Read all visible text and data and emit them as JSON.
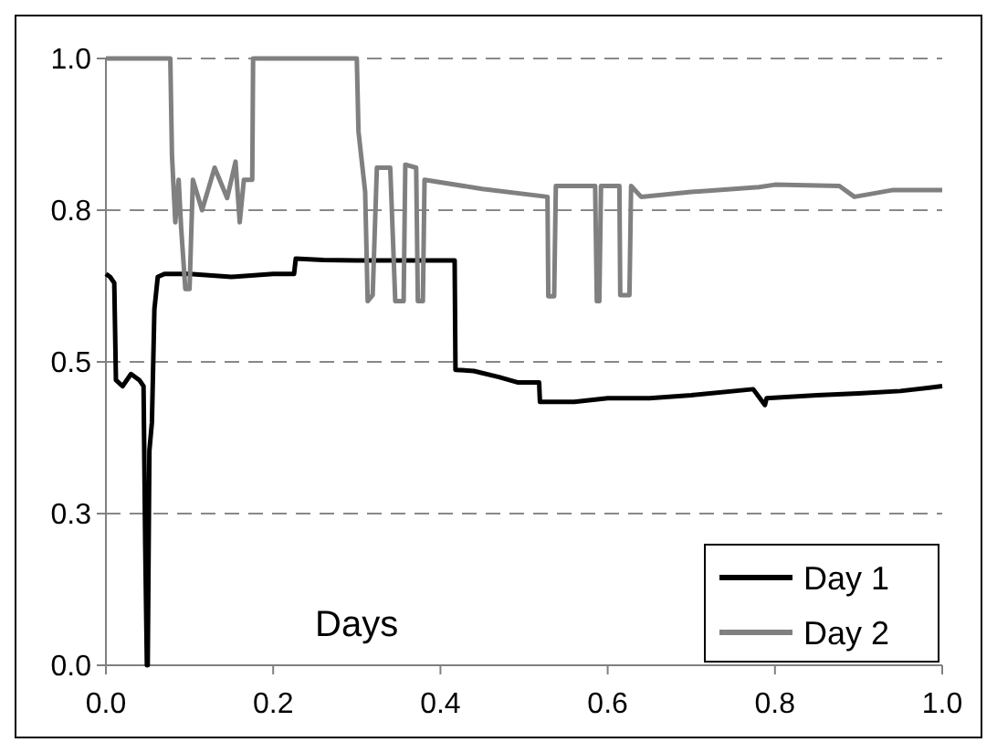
{
  "chart_data": {
    "type": "line",
    "xlabel": "Days",
    "xlim": [
      0,
      1
    ],
    "xticks": [
      {
        "value": 0,
        "label": "0.0"
      },
      0.2,
      0.4,
      0.6,
      0.8,
      {
        "value": 1,
        "label": "1.0"
      }
    ],
    "ylim": [
      0,
      1
    ],
    "yticks": [
      {
        "value": 0,
        "label": "0.0"
      },
      {
        "value": 0.25,
        "label": "0.3"
      },
      0.5,
      {
        "value": 0.75,
        "label": "0.8"
      },
      {
        "value": 1,
        "label": "1.0"
      }
    ],
    "grid": "y",
    "line_style": "solid",
    "legend": "bottom right",
    "series": [
      {
        "name": "Day 1",
        "color": "#000000",
        "x": [
          0,
          0.005,
          0.01,
          0.012,
          0.02,
          0.03,
          0.04,
          0.045,
          0.047,
          0.049,
          0.05,
          0.052,
          0.055,
          0.058,
          0.062,
          0.07,
          0.1,
          0.15,
          0.2,
          0.225,
          0.227,
          0.26,
          0.3,
          0.35,
          0.4,
          0.417,
          0.418,
          0.44,
          0.47,
          0.493,
          0.518,
          0.519,
          0.56,
          0.6,
          0.65,
          0.7,
          0.774,
          0.788,
          0.79,
          0.85,
          0.9,
          0.95,
          1.0
        ],
        "values": [
          0.645,
          0.64,
          0.63,
          0.47,
          0.46,
          0.48,
          0.47,
          0.46,
          0.2,
          0,
          0,
          0.354,
          0.4,
          0.587,
          0.64,
          0.645,
          0.645,
          0.64,
          0.645,
          0.645,
          0.67,
          0.668,
          0.667,
          0.667,
          0.667,
          0.667,
          0.487,
          0.485,
          0.475,
          0.466,
          0.466,
          0.434,
          0.434,
          0.44,
          0.44,
          0.445,
          0.455,
          0.429,
          0.44,
          0.445,
          0.448,
          0.452,
          0.46
        ]
      },
      {
        "name": "Day 2",
        "color": "#808080",
        "x": [
          0,
          0.077,
          0.079,
          0.083,
          0.087,
          0.09,
          0.095,
          0.1,
          0.104,
          0.115,
          0.13,
          0.145,
          0.155,
          0.16,
          0.165,
          0.175,
          0.176,
          0.3,
          0.302,
          0.31,
          0.313,
          0.319,
          0.324,
          0.34,
          0.346,
          0.356,
          0.358,
          0.371,
          0.373,
          0.379,
          0.381,
          0.45,
          0.528,
          0.529,
          0.536,
          0.538,
          0.585,
          0.587,
          0.59,
          0.592,
          0.614,
          0.615,
          0.626,
          0.628,
          0.64,
          0.7,
          0.781,
          0.8,
          0.877,
          0.895,
          0.94,
          0.99,
          1.0
        ],
        "values": [
          1,
          1,
          0.84,
          0.73,
          0.8,
          0.72,
          0.62,
          0.62,
          0.8,
          0.75,
          0.82,
          0.77,
          0.83,
          0.73,
          0.8,
          0.8,
          1,
          1,
          0.88,
          0.78,
          0.6,
          0.61,
          0.82,
          0.82,
          0.6,
          0.6,
          0.825,
          0.82,
          0.6,
          0.6,
          0.8,
          0.785,
          0.772,
          0.608,
          0.608,
          0.79,
          0.79,
          0.6,
          0.6,
          0.79,
          0.79,
          0.61,
          0.61,
          0.79,
          0.772,
          0.78,
          0.788,
          0.792,
          0.79,
          0.772,
          0.783,
          0.783,
          0.783
        ]
      }
    ]
  }
}
